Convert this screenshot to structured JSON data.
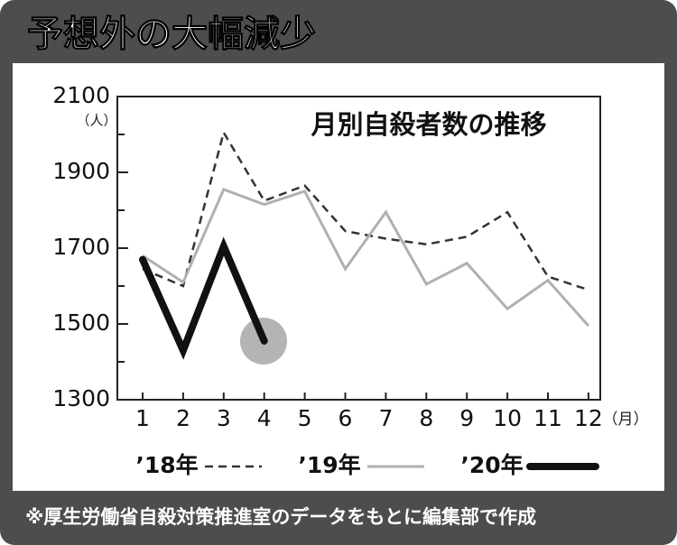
{
  "header": {
    "title": "予想外の大幅減少"
  },
  "footnote": "※厚生労働省自殺対策推進室のデータをもとに編集部で作成",
  "chart_data": {
    "type": "line",
    "title": "月別自殺者数の推移",
    "y_unit": "（人）",
    "x_unit": "（月）",
    "categories": [
      "1",
      "2",
      "3",
      "4",
      "5",
      "6",
      "7",
      "8",
      "9",
      "10",
      "11",
      "12"
    ],
    "ylim": [
      1300,
      2100
    ],
    "yticks": [
      1300,
      1500,
      1700,
      1900,
      2100
    ],
    "yminor_ticks": [
      1400,
      1600,
      1800,
      2000
    ],
    "series": [
      {
        "name": "’18年",
        "color": "#333333",
        "line_style": "dashed",
        "values": [
          1645,
          1600,
          2005,
          1825,
          1865,
          1745,
          1725,
          1710,
          1730,
          1795,
          1625,
          1590
        ]
      },
      {
        "name": "’19年",
        "color": "#b0b0b0",
        "line_style": "solid",
        "values": [
          1680,
          1610,
          1855,
          1815,
          1850,
          1645,
          1795,
          1605,
          1660,
          1540,
          1615,
          1495
        ]
      },
      {
        "name": "’20年",
        "color": "#111111",
        "line_style": "bold",
        "values": [
          1670,
          1430,
          1705,
          1455,
          null,
          null,
          null,
          null,
          null,
          null,
          null,
          null
        ]
      }
    ]
  }
}
